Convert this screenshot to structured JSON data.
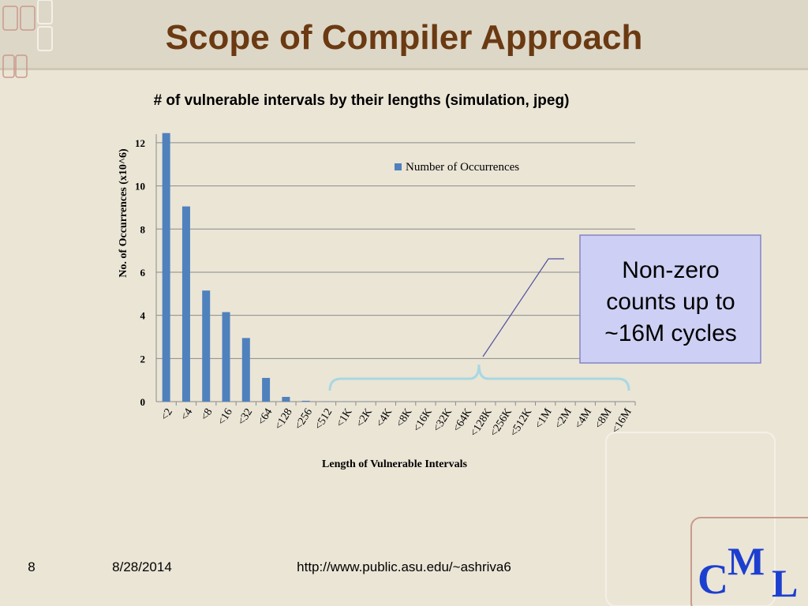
{
  "slide": {
    "title": "Scope of Compiler Approach",
    "callout": [
      "Non-zero",
      "counts up to",
      "~16M cycles"
    ],
    "footer": {
      "page": "8",
      "date": "8/28/2014",
      "url": "http://www.public.asu.edu/~ashriva6"
    },
    "logo": [
      "C",
      "M",
      "L"
    ]
  },
  "chart_data": {
    "type": "bar",
    "title": "# of vulnerable intervals by their lengths (simulation, jpeg)",
    "x_label": "Length of Vulnerable Intervals",
    "y_label": "No. of Occurrences (x10^6)",
    "categories": [
      "<2",
      "<4",
      "<8",
      "<16",
      "<32",
      "<64",
      "<128",
      "<256",
      "<512",
      "<1K",
      "<2K",
      "<4K",
      "<8K",
      "<16K",
      "<32K",
      "<64K",
      "<128K",
      "<256K",
      "<512K",
      "<1M",
      "<2M",
      "<4M",
      "<8M",
      "<16M"
    ],
    "series": [
      {
        "name": "Number of Occurrences",
        "color": "#4f81bd",
        "values": [
          12.45,
          9.05,
          5.15,
          4.15,
          2.95,
          1.1,
          0.22,
          0.04,
          0.01,
          0.01,
          0.01,
          0,
          0,
          0,
          0,
          0,
          0,
          0,
          0,
          0,
          0,
          0,
          0,
          0
        ]
      }
    ],
    "ylim": [
      0,
      12.4
    ],
    "yticks": [
      0,
      2,
      4,
      6,
      8,
      10,
      12
    ],
    "grid": true,
    "legend": "top-right"
  }
}
